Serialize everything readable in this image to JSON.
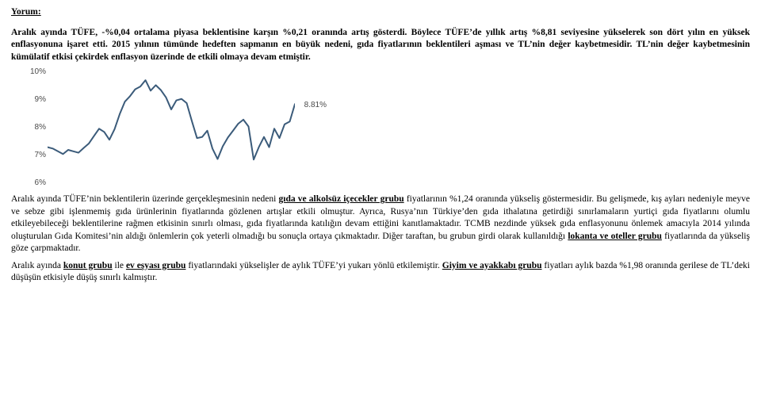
{
  "title": "Yorum:",
  "para1_parts": [
    "Aralık ayında TÜFE, -%0,04 ortalama piyasa beklentisine karşın %0,21 oranında artış gösterdi. Böylece TÜFE’de yıllık artış %8,81 seviyesine yükselerek son dört yılın en yüksek enflasyonuna işaret etti. 2015 yılının tümünde hedeften sapmanın en büyük nedeni, gıda fiyatlarının beklentileri aşması ve TL’nin değer kaybetmesidir.  TL’nin değer kaybetmesinin kümülatif etkisi çekirdek enflasyon üzerinde de etkili olmaya devam etmiştir."
  ],
  "chart": {
    "ylim": [
      6,
      10
    ],
    "ytick_step": 1,
    "ylabels": [
      "10%",
      "9%",
      "8%",
      "7%",
      "6%"
    ],
    "end_label": "8.81%",
    "line_color": "#3b5b7a",
    "label_color": "#4a4a4a",
    "label_fontsize": 10,
    "background_color": "#ffffff",
    "values": [
      7.25,
      7.2,
      7.1,
      7.0,
      7.15,
      7.1,
      7.05,
      7.22,
      7.38,
      7.65,
      7.92,
      7.8,
      7.52,
      7.9,
      8.45,
      8.9,
      9.1,
      9.35,
      9.45,
      9.68,
      9.3,
      9.5,
      9.32,
      9.05,
      8.62,
      8.95,
      9.0,
      8.85,
      8.2,
      7.58,
      7.62,
      7.85,
      7.2,
      6.82,
      7.28,
      7.6,
      7.85,
      8.1,
      8.25,
      8.0,
      6.8,
      7.25,
      7.62,
      7.25,
      7.92,
      7.58,
      8.08,
      8.18,
      8.81
    ]
  },
  "para2_runs": [
    {
      "t": "Aralık ayında TÜFE’nin beklentilerin üzerinde gerçekleşmesinin nedeni ",
      "c": ""
    },
    {
      "t": "gıda ve alkolsüz içecekler grubu",
      "c": "bu"
    },
    {
      "t": " fiyatlarının %1,24 oranında yükseliş göstermesidir. Bu gelişmede, kış ayları nedeniyle meyve ve sebze gibi işlenmemiş gıda ürünlerinin fiyatlarında gözlenen artışlar etkili olmuştur. Ayrıca, Rusya’nın Türkiye’den gıda ithalatına getirdiği sınırlamaların yurtiçi gıda fiyatlarını olumlu etkileyebileceği beklentilerine rağmen etkisinin sınırlı olması, gıda fiyatlarında katılığın devam ettiğini kanıtlamaktadır. TCMB nezdinde yüksek gıda enflasyonunu önlemek amacıyla 2014 yılında oluşturulan Gıda Komitesi’nin aldığı önlemlerin çok yeterli olmadığı bu sonuçla ortaya çıkmaktadır. Diğer taraftan, bu grubun girdi olarak kullanıldığı ",
      "c": ""
    },
    {
      "t": "lokanta ve oteller grubu",
      "c": "bu"
    },
    {
      "t": " fiyatlarında da yükseliş göze çarpmaktadır.",
      "c": ""
    }
  ],
  "para3_runs": [
    {
      "t": "Aralık ayında ",
      "c": ""
    },
    {
      "t": "konut grubu",
      "c": "bu"
    },
    {
      "t": " ile ",
      "c": ""
    },
    {
      "t": "ev eşyası grubu",
      "c": "bu"
    },
    {
      "t": " fiyatlarındaki yükselişler de aylık TÜFE’yi yukarı yönlü etkilemiştir.  ",
      "c": ""
    },
    {
      "t": "Giyim ve ayakkabı grubu",
      "c": "bu"
    },
    {
      "t": " fiyatları aylık bazda %1,98 oranında gerilese de TL’deki düşüşün etkisiyle düşüş sınırlı kalmıştır.",
      "c": ""
    }
  ]
}
